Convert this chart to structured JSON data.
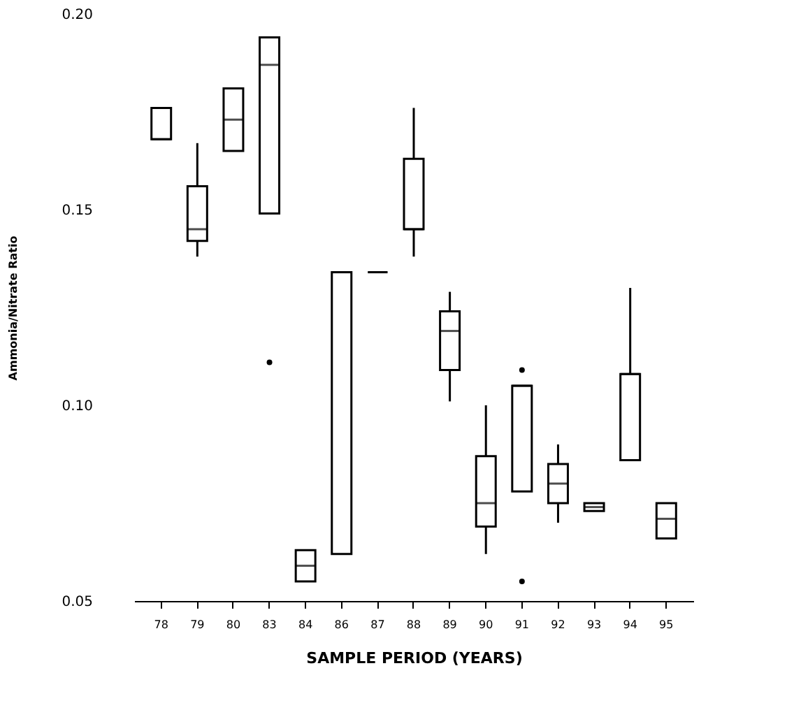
{
  "chart_data": {
    "type": "box",
    "xlabel": "SAMPLE PERIOD (YEARS)",
    "ylabel": "Ammonia/Nitrate Ratio",
    "categories": [
      "78",
      "79",
      "80",
      "83",
      "84",
      "86",
      "87",
      "88",
      "89",
      "90",
      "91",
      "92",
      "93",
      "94",
      "95"
    ],
    "ylim": [
      0.05,
      0.2
    ],
    "yticks": [
      0.05,
      {
        "value": 0.1,
        "label": "0.10"
      },
      0.15,
      {
        "value": 0.2,
        "label": "0.20"
      }
    ],
    "grid": false,
    "boxes": [
      {
        "low": 0.168,
        "q1": 0.168,
        "median": 0.168,
        "q3": 0.176,
        "high": 0.176
      },
      {
        "low": 0.138,
        "q1": 0.142,
        "median": 0.145,
        "q3": 0.156,
        "high": 0.167
      },
      {
        "low": 0.165,
        "q1": 0.165,
        "median": 0.173,
        "q3": 0.181,
        "high": 0.181
      },
      {
        "low": 0.149,
        "q1": 0.149,
        "median": 0.187,
        "q3": 0.194,
        "high": 0.194,
        "outliers": [
          0.111
        ]
      },
      {
        "low": 0.055,
        "q1": 0.055,
        "median": 0.059,
        "q3": 0.063,
        "high": 0.063
      },
      {
        "low": 0.062,
        "q1": 0.062,
        "median": 0.134,
        "q3": 0.134,
        "high": 0.134
      },
      {
        "low": 0.134,
        "q1": 0.134,
        "median": 0.134,
        "q3": 0.134,
        "high": 0.134
      },
      {
        "low": 0.138,
        "q1": 0.145,
        "median": 0.145,
        "q3": 0.163,
        "high": 0.176
      },
      {
        "low": 0.101,
        "q1": 0.109,
        "median": 0.119,
        "q3": 0.124,
        "high": 0.129
      },
      {
        "low": 0.062,
        "q1": 0.069,
        "median": 0.075,
        "q3": 0.087,
        "high": 0.1
      },
      {
        "low": 0.078,
        "q1": 0.078,
        "median": 0.105,
        "q3": 0.105,
        "high": 0.105,
        "outliers": [
          0.109,
          0.055
        ]
      },
      {
        "low": 0.07,
        "q1": 0.075,
        "median": 0.08,
        "q3": 0.085,
        "high": 0.09
      },
      {
        "low": 0.073,
        "q1": 0.073,
        "median": 0.074,
        "q3": 0.075,
        "high": 0.075
      },
      {
        "low": 0.086,
        "q1": 0.086,
        "median": 0.108,
        "q3": 0.108,
        "high": 0.13
      },
      {
        "low": 0.066,
        "q1": 0.066,
        "median": 0.071,
        "q3": 0.075,
        "high": 0.075
      }
    ]
  }
}
